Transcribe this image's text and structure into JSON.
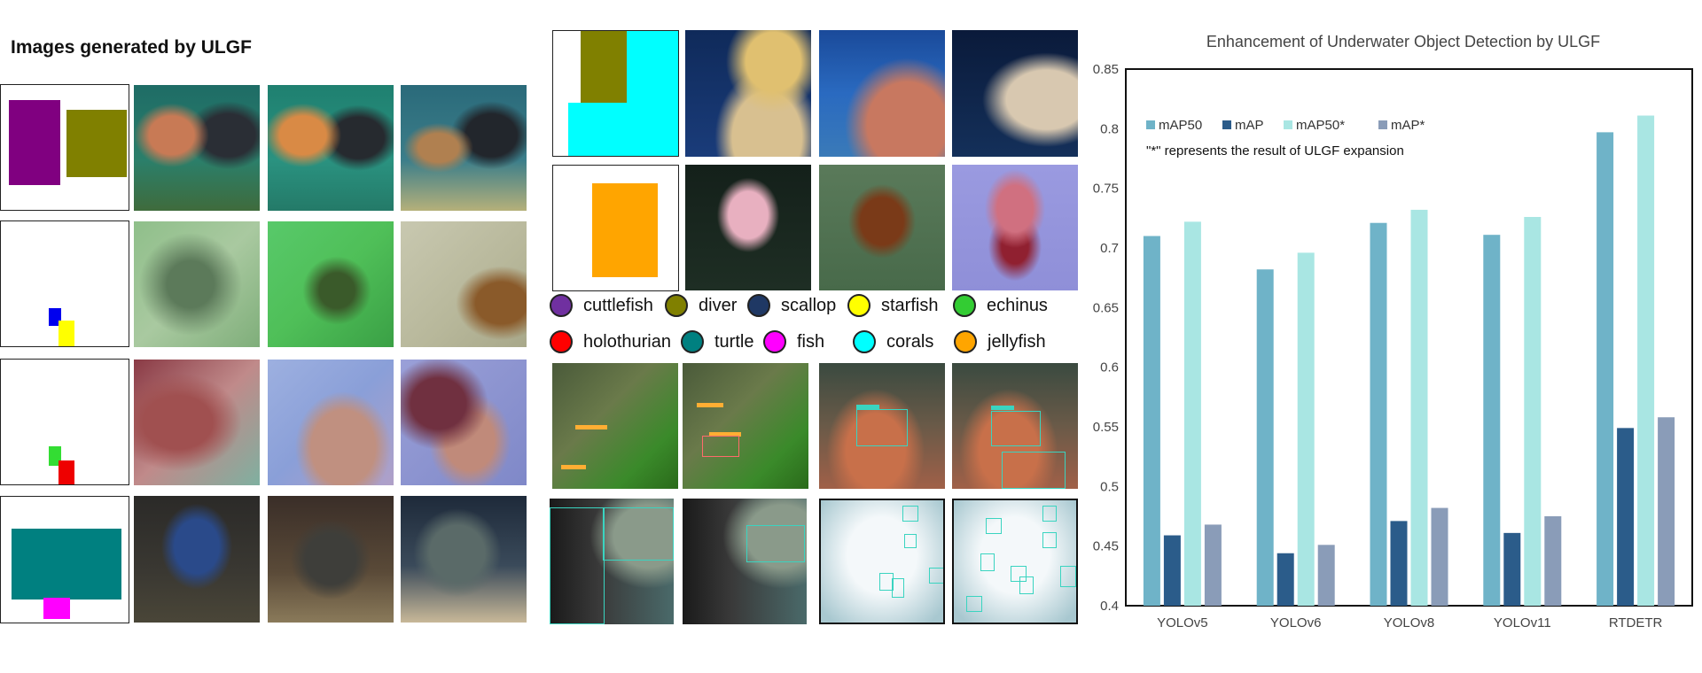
{
  "left_title": "Images generated by ULGF",
  "legend_classes": [
    {
      "name": "cuttlefish",
      "color": "#7030a0"
    },
    {
      "name": "diver",
      "color": "#808000"
    },
    {
      "name": "scallop",
      "color": "#1f3864"
    },
    {
      "name": "starfish",
      "color": "#ffff00"
    },
    {
      "name": "echinus",
      "color": "#33cc33"
    },
    {
      "name": "holothurian",
      "color": "#ff0000"
    },
    {
      "name": "turtle",
      "color": "#008080"
    },
    {
      "name": "fish",
      "color": "#ff00ff"
    },
    {
      "name": "corals",
      "color": "#00ffff"
    },
    {
      "name": "jellyfish",
      "color": "#ffa500"
    }
  ],
  "chart_data": {
    "type": "bar",
    "title": "Enhancement of Underwater Object Detection by ULGF",
    "note": "\"*\" represents the result of ULGF expansion",
    "categories": [
      "YOLOv5",
      "YOLOv6",
      "YOLOv8",
      "YOLOv11",
      "RTDETR"
    ],
    "series": [
      {
        "name": "mAP50",
        "color": "#6fb3c8",
        "values": [
          0.71,
          0.682,
          0.721,
          0.711,
          0.797
        ]
      },
      {
        "name": "mAP",
        "color": "#2b5c8a",
        "values": [
          0.459,
          0.444,
          0.471,
          0.461,
          0.549
        ]
      },
      {
        "name": "mAP50*",
        "color": "#a9e6e3",
        "values": [
          0.722,
          0.696,
          0.732,
          0.726,
          0.811
        ]
      },
      {
        "name": "mAP*",
        "color": "#8a9cb8",
        "values": [
          0.468,
          0.451,
          0.482,
          0.475,
          0.558
        ]
      }
    ],
    "ylim": [
      0.4,
      0.85
    ],
    "yticks": [
      "0.4",
      "0.45",
      "0.5",
      "0.55",
      "0.6",
      "0.65",
      "0.7",
      "0.75",
      "0.8",
      "0.85"
    ],
    "legend_position": "top-left",
    "grid": false
  }
}
